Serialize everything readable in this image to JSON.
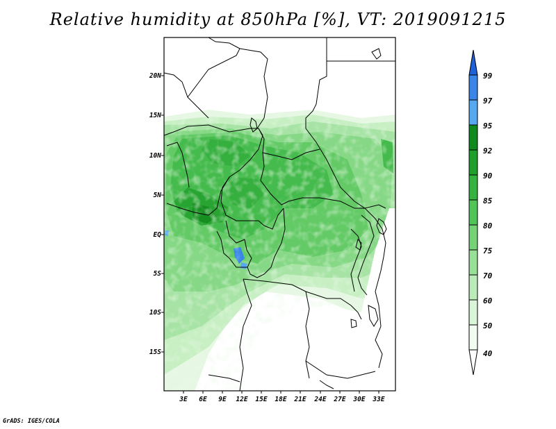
{
  "title": "Relative humidity at 850hPa [%], VT: 2019091215",
  "credit": "GrADS: IGES/COLA",
  "map": {
    "lat_labels": [
      "20N",
      "15N",
      "10N",
      "5N",
      "EQ",
      "5S",
      "10S",
      "15S"
    ],
    "lon_labels": [
      "3E",
      "6E",
      "9E",
      "12E",
      "15E",
      "18E",
      "21E",
      "24E",
      "27E",
      "30E",
      "33E"
    ]
  },
  "colorbar": {
    "levels": [
      "99",
      "97",
      "95",
      "92",
      "90",
      "85",
      "80",
      "75",
      "70",
      "60",
      "50",
      "40"
    ],
    "colors": [
      "#2060d8",
      "#3a86e8",
      "#56a8f0",
      "#0f8a1c",
      "#1ea02a",
      "#34b33e",
      "#50c457",
      "#74d277",
      "#98df98",
      "#bbebb9",
      "#dbf5d8",
      "#f2fcf0",
      "#ffffff"
    ]
  }
}
